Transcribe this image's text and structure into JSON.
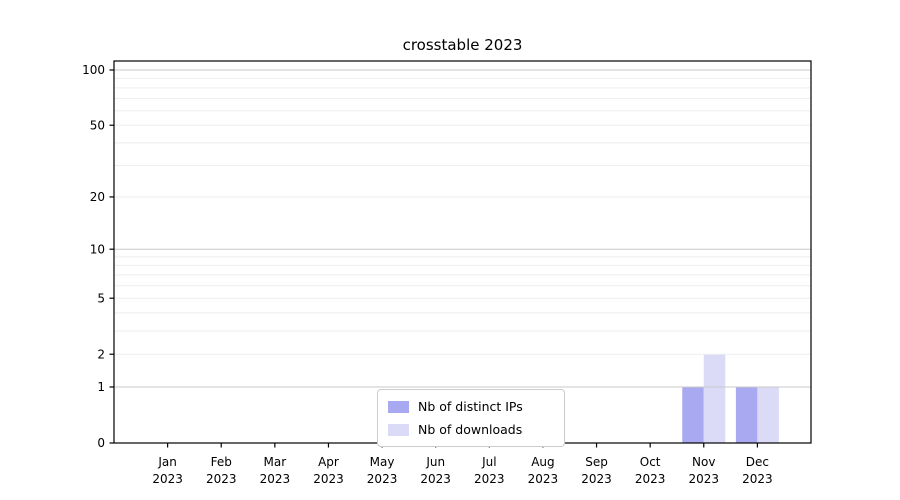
{
  "chart_data": {
    "type": "bar",
    "title": "crosstable 2023",
    "categories": [
      "Jan",
      "Feb",
      "Mar",
      "Apr",
      "May",
      "Jun",
      "Jul",
      "Aug",
      "Sep",
      "Oct",
      "Nov",
      "Dec"
    ],
    "x_sublabel": "2023",
    "series": [
      {
        "name": "Nb of distinct IPs",
        "color": "#a9a9f1",
        "values": [
          0,
          0,
          0,
          0,
          0,
          0,
          0,
          0,
          0,
          0,
          1,
          1
        ]
      },
      {
        "name": "Nb of downloads",
        "color": "#dbdbf8",
        "values": [
          0,
          0,
          0,
          0,
          0,
          0,
          0,
          0,
          0,
          0,
          2,
          1
        ]
      }
    ],
    "xlabel": "",
    "ylabel": "",
    "yscale": "symlog (position proportional to log(1+y))",
    "ylim": [
      0,
      111
    ],
    "yticks": [
      0,
      1,
      2,
      5,
      10,
      20,
      50,
      100
    ],
    "grid": {
      "major": [
        1,
        10,
        100
      ],
      "minor": [
        2,
        3,
        4,
        5,
        6,
        7,
        8,
        9,
        20,
        30,
        40,
        50,
        60,
        70,
        80,
        90
      ]
    },
    "legend_position": "inside-bottom-center"
  },
  "colors": {
    "background": "#ffffff",
    "axis": "#000000",
    "text": "#000000",
    "grid_major": "#c9c9c9",
    "grid_minor": "#eeeeee",
    "legend_border": "#cccccc"
  }
}
